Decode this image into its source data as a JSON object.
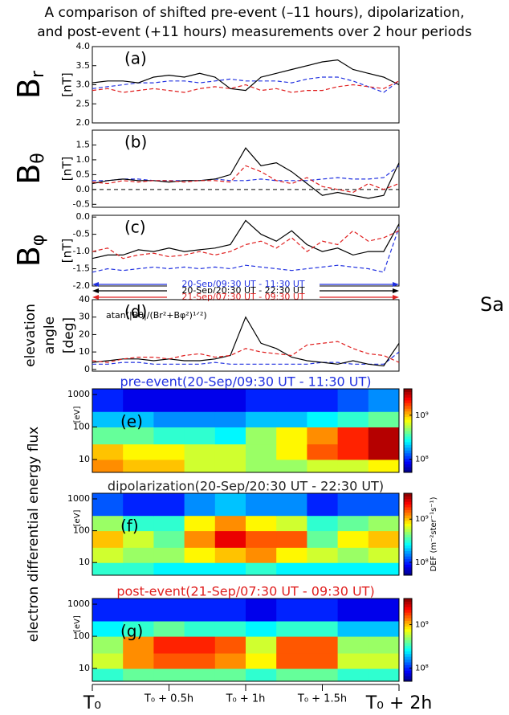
{
  "chart_data": {
    "title": [
      "A comparison of shifted pre-event (–11 hours), dipolarization,",
      "and post-event (+11 hours) measurements over 2 hour periods"
    ],
    "side_text": "Sa",
    "xlim": [
      0,
      2
    ],
    "xticks": [
      {
        "value": 0,
        "label": "T₀"
      },
      {
        "value": 0.5,
        "label": "T₀ + 0.5h"
      },
      {
        "value": 1,
        "label": "T₀ + 1h"
      },
      {
        "value": 1.5,
        "label": "T₀ + 1.5h"
      },
      {
        "value": 2,
        "label": "T₀ + 2h"
      }
    ],
    "x": [
      0,
      0.1,
      0.2,
      0.3,
      0.4,
      0.5,
      0.6,
      0.7,
      0.8,
      0.9,
      1.0,
      1.1,
      1.2,
      1.3,
      1.4,
      1.5,
      1.6,
      1.7,
      1.8,
      1.9,
      2.0
    ],
    "intervals": [
      {
        "name": "20-Sep/09:30 UT - 11:30 UT",
        "color": "#2030e0",
        "dashed": true
      },
      {
        "name": "20-Sep/20:30 UT - 22:30 UT",
        "color": "#000000",
        "dashed": false
      },
      {
        "name": "21-Sep/07:30 UT - 09:30 UT",
        "color": "#e02020",
        "dashed": true
      }
    ],
    "panels": [
      {
        "type": "line",
        "label": "(a)",
        "ylabel": {
          "symbol": "B",
          "sub": "r",
          "unit": "[nT]"
        },
        "ylim": [
          2.0,
          4.0
        ],
        "yticks": [
          {
            "value": 2.0,
            "label": "2.0"
          },
          {
            "value": 2.5,
            "label": "2.5"
          },
          {
            "value": 3.0,
            "label": "3.0"
          },
          {
            "value": 3.5,
            "label": "3.5"
          },
          {
            "value": 4.0,
            "label": "4.0"
          }
        ],
        "series": [
          {
            "values": [
              2.9,
              2.95,
              3.0,
              3.05,
              3.05,
              3.1,
              3.1,
              3.05,
              3.1,
              3.15,
              3.1,
              3.1,
              3.1,
              3.05,
              3.15,
              3.2,
              3.2,
              3.1,
              2.95,
              2.8,
              3.1
            ]
          },
          {
            "values": [
              3.05,
              3.1,
              3.1,
              3.05,
              3.2,
              3.25,
              3.2,
              3.3,
              3.2,
              2.9,
              2.85,
              3.2,
              3.3,
              3.4,
              3.5,
              3.6,
              3.65,
              3.4,
              3.3,
              3.2,
              3.0
            ]
          },
          {
            "values": [
              2.85,
              2.9,
              2.8,
              2.85,
              2.9,
              2.85,
              2.8,
              2.9,
              2.95,
              2.9,
              3.0,
              2.85,
              2.9,
              2.8,
              2.85,
              2.85,
              2.95,
              3.0,
              2.95,
              2.9,
              3.1
            ]
          }
        ]
      },
      {
        "type": "line",
        "label": "(b)",
        "ylabel": {
          "symbol": "B",
          "sub": "θ",
          "unit": "[nT]"
        },
        "ylim": [
          -0.6,
          2.0
        ],
        "hline": 0,
        "yticks": [
          {
            "value": -0.5,
            "label": "-0.5"
          },
          {
            "value": 0,
            "label": "0.0"
          },
          {
            "value": 0.5,
            "label": "0.5"
          },
          {
            "value": 1.0,
            "label": "1.0"
          },
          {
            "value": 1.5,
            "label": "1.5"
          }
        ],
        "series": [
          {
            "values": [
              0.3,
              0.3,
              0.35,
              0.35,
              0.3,
              0.3,
              0.3,
              0.3,
              0.35,
              0.3,
              0.3,
              0.35,
              0.3,
              0.3,
              0.3,
              0.35,
              0.4,
              0.35,
              0.35,
              0.4,
              0.8
            ]
          },
          {
            "values": [
              0.2,
              0.3,
              0.35,
              0.3,
              0.3,
              0.25,
              0.3,
              0.3,
              0.35,
              0.5,
              1.4,
              0.8,
              0.9,
              0.6,
              0.2,
              -0.2,
              -0.1,
              -0.2,
              -0.3,
              -0.2,
              0.9
            ]
          },
          {
            "values": [
              0.25,
              0.2,
              0.3,
              0.25,
              0.3,
              0.3,
              0.25,
              0.3,
              0.3,
              0.25,
              0.8,
              0.6,
              0.3,
              0.2,
              0.4,
              0.1,
              0.0,
              -0.1,
              0.2,
              0.0,
              0.2
            ]
          }
        ]
      },
      {
        "type": "line",
        "label": "(c)",
        "ylabel": {
          "symbol": "B",
          "sub": "φ",
          "unit": "[nT]"
        },
        "ylim": [
          -2.0,
          0.05
        ],
        "legend": true,
        "yticks": [
          {
            "value": -2.0,
            "label": "-2.0"
          },
          {
            "value": -1.5,
            "label": "-1.5"
          },
          {
            "value": -1.0,
            "label": "-1.0"
          },
          {
            "value": -0.5,
            "label": "-0.5"
          },
          {
            "value": 0,
            "label": "0.0"
          }
        ],
        "series": [
          {
            "values": [
              -1.6,
              -1.5,
              -1.55,
              -1.5,
              -1.45,
              -1.5,
              -1.45,
              -1.5,
              -1.45,
              -1.5,
              -1.4,
              -1.45,
              -1.5,
              -1.55,
              -1.5,
              -1.45,
              -1.4,
              -1.45,
              -1.5,
              -1.6,
              -0.3
            ]
          },
          {
            "values": [
              -1.2,
              -1.1,
              -1.1,
              -0.95,
              -1.0,
              -0.9,
              -1.0,
              -0.95,
              -0.9,
              -0.8,
              -0.1,
              -0.5,
              -0.7,
              -0.4,
              -0.8,
              -1.0,
              -0.9,
              -1.1,
              -1.0,
              -1.0,
              -0.2
            ]
          },
          {
            "values": [
              -1.0,
              -0.9,
              -1.2,
              -1.1,
              -1.05,
              -1.15,
              -1.1,
              -1.0,
              -1.1,
              -1.0,
              -0.8,
              -0.7,
              -0.9,
              -0.6,
              -1.0,
              -0.7,
              -0.8,
              -0.4,
              -0.7,
              -0.6,
              -0.4
            ]
          }
        ]
      },
      {
        "type": "line",
        "label": "(d)",
        "ylabel_lines": [
          "elevation",
          "angle",
          "[deg]"
        ],
        "annotation": "atan(|Bθ|/(Br²+Bφ²)¹ᐟ²)",
        "ylim": [
          -1,
          40
        ],
        "yticks": [
          0,
          10,
          20,
          30,
          40
        ],
        "series": [
          {
            "values": [
              3,
              3,
              4,
              4,
              3,
              3,
              3,
              3,
              4,
              3,
              3,
              3,
              3,
              3,
              3,
              4,
              4,
              3,
              3,
              3,
              10
            ]
          },
          {
            "values": [
              4,
              5,
              6,
              6,
              5,
              6,
              5,
              5,
              6,
              8,
              30,
              15,
              12,
              7,
              5,
              4,
              3,
              5,
              3,
              2,
              15
            ]
          },
          {
            "values": [
              5,
              4,
              6,
              7,
              7,
              6,
              8,
              9,
              7,
              8,
              12,
              10,
              9,
              8,
              14,
              15,
              16,
              12,
              9,
              8,
              4
            ]
          }
        ]
      }
    ],
    "spectrogram_ylabel": "electron differential energy flux",
    "spectrogram_yunit": "[eV]",
    "spec_x": [
      0,
      0.2,
      0.4,
      0.6,
      0.8,
      1.0,
      1.2,
      1.4,
      1.6,
      1.8,
      2.0
    ],
    "spec_energy": [
      4,
      10,
      30,
      100,
      300,
      1500
    ],
    "spec_ylim": [
      4,
      1500
    ],
    "spec_yticks": [
      10,
      100,
      1000
    ],
    "colorbar_lim": [
      7.7,
      9.6
    ],
    "colorbar_ticks": [
      {
        "value": 8,
        "label": "10⁸"
      },
      {
        "value": 9,
        "label": "10⁹"
      }
    ],
    "spectrograms": [
      {
        "type": "heatmap",
        "label": "(e)",
        "title": "pre-event(20-Sep/09:30 UT - 11:30 UT)",
        "color": "#2030e0",
        "values": [
          [
            9.1,
            9.0,
            9.0,
            8.8,
            8.8,
            8.7,
            8.7,
            8.8,
            8.8,
            8.9
          ],
          [
            9.0,
            8.9,
            8.9,
            8.8,
            8.8,
            8.7,
            8.9,
            9.2,
            9.3,
            9.5
          ],
          [
            8.6,
            8.6,
            8.5,
            8.5,
            8.4,
            8.7,
            8.9,
            9.1,
            9.3,
            9.5
          ],
          [
            8.3,
            8.3,
            8.2,
            8.2,
            8.2,
            8.3,
            8.3,
            8.4,
            8.5,
            8.6
          ],
          [
            8.0,
            7.9,
            7.9,
            7.9,
            7.9,
            8.0,
            8.0,
            8.0,
            8.1,
            8.2
          ]
        ]
      },
      {
        "type": "heatmap",
        "label": "(f)",
        "title": "dipolarization(20-Sep/20:30 UT - 22:30 UT)",
        "color": "#222222",
        "colorbar_label": "DEF (m⁻²ster⁻¹s⁻¹)",
        "values": [
          [
            8.5,
            8.5,
            8.4,
            8.4,
            8.4,
            8.5,
            8.4,
            8.4,
            8.4,
            8.4
          ],
          [
            8.8,
            8.7,
            8.7,
            8.9,
            9.0,
            9.1,
            8.9,
            8.8,
            8.7,
            8.8
          ],
          [
            9.0,
            8.8,
            8.6,
            9.1,
            9.4,
            9.2,
            9.2,
            8.6,
            8.9,
            9.0
          ],
          [
            8.7,
            8.5,
            8.5,
            8.9,
            9.1,
            8.9,
            8.8,
            8.5,
            8.6,
            8.7
          ],
          [
            8.1,
            8.0,
            8.0,
            8.2,
            8.3,
            8.2,
            8.2,
            8.0,
            8.1,
            8.1
          ]
        ]
      },
      {
        "type": "heatmap",
        "label": "(g)",
        "title": "post-event(21-Sep/07:30 UT - 09:30 UT)",
        "color": "#e02020",
        "values": [
          [
            8.5,
            8.6,
            8.6,
            8.6,
            8.6,
            8.5,
            8.6,
            8.6,
            8.5,
            8.5
          ],
          [
            8.8,
            9.1,
            9.2,
            9.2,
            9.1,
            8.9,
            9.2,
            9.2,
            8.8,
            8.8
          ],
          [
            8.7,
            9.1,
            9.3,
            9.3,
            9.2,
            8.8,
            9.2,
            9.2,
            8.7,
            8.7
          ],
          [
            8.4,
            8.5,
            8.6,
            8.5,
            8.5,
            8.4,
            8.5,
            8.5,
            8.3,
            8.3
          ],
          [
            8.0,
            8.0,
            8.0,
            8.0,
            8.0,
            7.9,
            8.0,
            8.0,
            7.9,
            7.9
          ]
        ]
      }
    ]
  }
}
